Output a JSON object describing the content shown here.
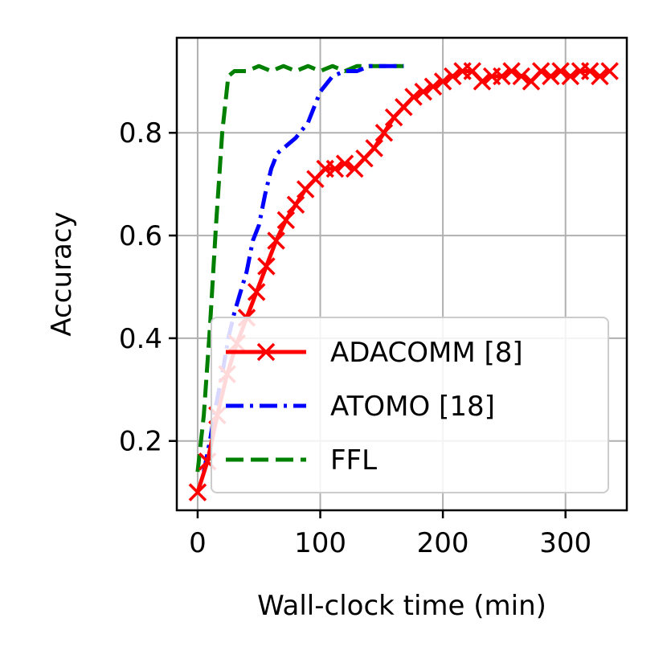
{
  "chart_data": {
    "type": "line",
    "title": "",
    "xlabel": "Wall-clock time (min)",
    "ylabel": "Accuracy",
    "xlim": [
      -17,
      350
    ],
    "ylim": [
      0.065,
      0.985
    ],
    "xticks": [
      0,
      100,
      200,
      300
    ],
    "xtick_labels": [
      "0",
      "100",
      "200",
      "300"
    ],
    "yticks": [
      0.2,
      0.4,
      0.6,
      0.8
    ],
    "ytick_labels": [
      "0.2",
      "0.4",
      "0.6",
      "0.8"
    ],
    "grid": true,
    "legend_position": "lower-right",
    "series": [
      {
        "name": "ADACOMM [8]",
        "color": "#ff0000",
        "style": "solid",
        "marker": "x",
        "x": [
          0,
          8,
          16,
          24,
          32,
          40,
          48,
          56,
          64,
          72,
          80,
          88,
          96,
          104,
          112,
          120,
          128,
          136,
          144,
          152,
          160,
          168,
          176,
          184,
          192,
          200,
          208,
          216,
          224,
          232,
          240,
          248,
          256,
          264,
          272,
          280,
          288,
          296,
          304,
          312,
          320,
          328,
          336
        ],
        "y": [
          0.1,
          0.16,
          0.25,
          0.33,
          0.39,
          0.44,
          0.49,
          0.54,
          0.59,
          0.63,
          0.66,
          0.69,
          0.71,
          0.73,
          0.73,
          0.74,
          0.73,
          0.75,
          0.77,
          0.8,
          0.83,
          0.85,
          0.87,
          0.88,
          0.89,
          0.9,
          0.91,
          0.92,
          0.92,
          0.9,
          0.91,
          0.91,
          0.92,
          0.91,
          0.9,
          0.92,
          0.91,
          0.92,
          0.91,
          0.92,
          0.92,
          0.91,
          0.92
        ]
      },
      {
        "name": "ATOMO [18]",
        "color": "#0000ff",
        "style": "dashdot",
        "marker": "",
        "x": [
          5,
          10,
          15,
          20,
          25,
          30,
          35,
          40,
          45,
          50,
          55,
          60,
          65,
          70,
          80,
          90,
          100,
          110,
          120,
          130,
          140,
          150,
          160,
          168
        ],
        "y": [
          0.14,
          0.2,
          0.27,
          0.33,
          0.4,
          0.45,
          0.49,
          0.53,
          0.59,
          0.62,
          0.68,
          0.73,
          0.76,
          0.77,
          0.79,
          0.82,
          0.88,
          0.91,
          0.92,
          0.92,
          0.93,
          0.93,
          0.93,
          0.93
        ]
      },
      {
        "name": "FFL",
        "color": "#008000",
        "style": "dashed",
        "marker": "",
        "x": [
          0,
          5,
          10,
          15,
          20,
          25,
          30,
          40,
          50,
          60,
          70,
          80,
          90,
          100,
          110,
          120,
          130,
          140,
          150,
          160,
          168
        ],
        "y": [
          0.14,
          0.25,
          0.42,
          0.62,
          0.8,
          0.91,
          0.92,
          0.92,
          0.93,
          0.92,
          0.93,
          0.92,
          0.93,
          0.92,
          0.93,
          0.92,
          0.93,
          0.93,
          0.93,
          0.93,
          0.93
        ]
      }
    ]
  }
}
